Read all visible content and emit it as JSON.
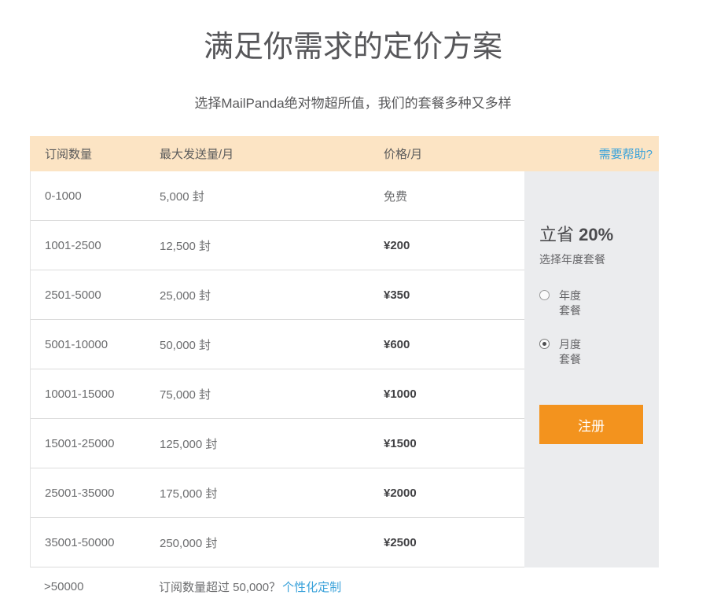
{
  "page": {
    "title": "满足你需求的定价方案",
    "subtitle": "选择MailPanda绝对物超所值，我们的套餐多种又多样"
  },
  "table": {
    "headers": {
      "subscribers": "订阅数量",
      "volume": "最大发送量/月",
      "price": "价格/月"
    },
    "help_link": "需要帮助?",
    "rows": [
      {
        "range": "0-1000",
        "volume": "5,000 封",
        "price": "免费",
        "bold": false
      },
      {
        "range": "1001-2500",
        "volume": "12,500 封",
        "price": "¥200",
        "bold": true
      },
      {
        "range": "2501-5000",
        "volume": "25,000 封",
        "price": "¥350",
        "bold": true
      },
      {
        "range": "5001-10000",
        "volume": "50,000 封",
        "price": "¥600",
        "bold": true
      },
      {
        "range": "10001-15000",
        "volume": "75,000 封",
        "price": "¥1000",
        "bold": true
      },
      {
        "range": "15001-25000",
        "volume": "125,000 封",
        "price": "¥1500",
        "bold": true
      },
      {
        "range": "25001-35000",
        "volume": "175,000 封",
        "price": "¥2000",
        "bold": true
      },
      {
        "range": "35001-50000",
        "volume": "250,000 封",
        "price": "¥2500",
        "bold": true
      }
    ],
    "custom_row": {
      "range": ">50000",
      "text": "订阅数量超过 50,000？",
      "link": "个性化定制"
    }
  },
  "sidebar": {
    "promo_prefix": "立省 ",
    "promo_percent": "20%",
    "promo_subtitle": "选择年度套餐",
    "options": [
      {
        "id": "annual",
        "label": "年度 套餐",
        "selected": false
      },
      {
        "id": "monthly",
        "label": "月度 套餐",
        "selected": true
      }
    ],
    "signup_label": "注册"
  },
  "colors": {
    "header_band": "#fce4c4",
    "sidebar_bg": "#ebecee",
    "accent_orange": "#f3931e",
    "link_blue": "#3aa2da",
    "text_gray": "#6c6d6f",
    "text_dark": "#414144"
  }
}
